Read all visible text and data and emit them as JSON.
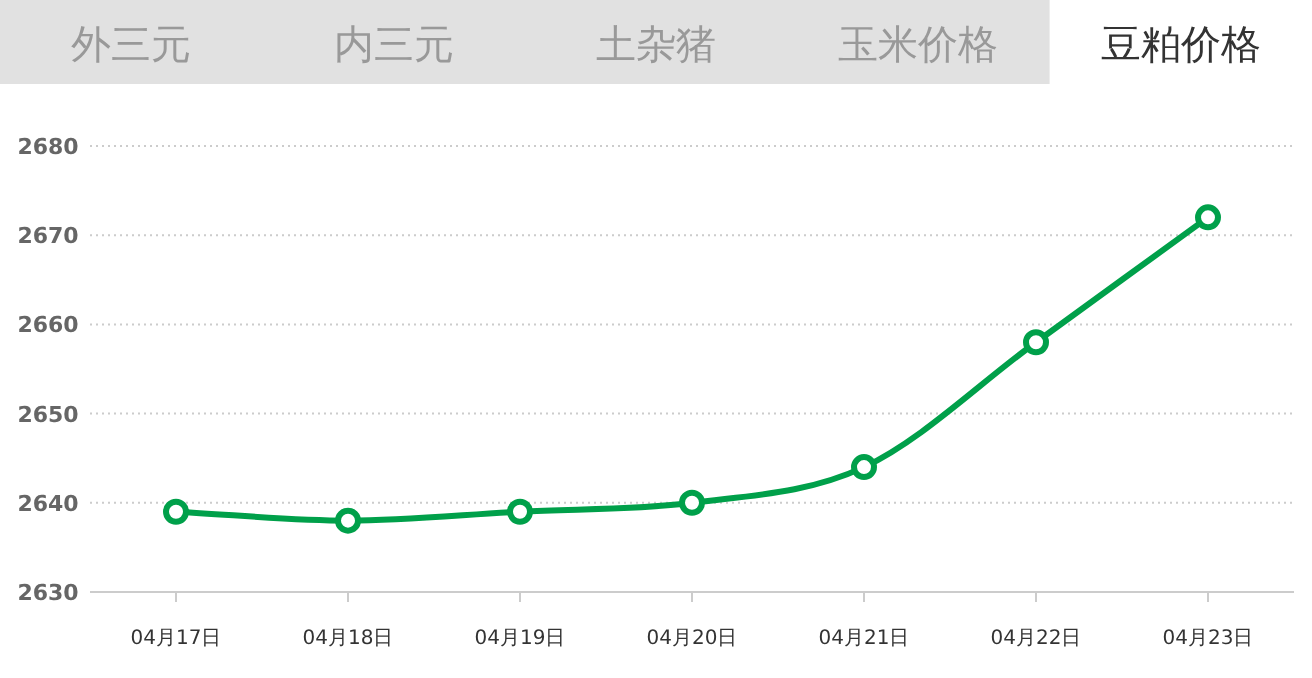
{
  "chart_data": {
    "type": "line",
    "title": "豆粕价格",
    "annotations": [
      "外三元",
      "内三元",
      "土杂猪",
      "玉米价格"
    ],
    "categories": [
      "04月17日",
      "04月18日",
      "04月19日",
      "04月20日",
      "04月21日",
      "04月22日",
      "04月23日"
    ],
    "series": [
      {
        "color": "#00a04a",
        "values": [
          2639,
          2638,
          2639,
          2640,
          2644,
          2658,
          2672
        ]
      }
    ],
    "ylim": [
      2630,
      2680
    ],
    "yticks": [
      2630,
      2640,
      2650,
      2660,
      2670,
      2680
    ],
    "grid": "y",
    "marker": "circle",
    "line_style": "solid"
  }
}
